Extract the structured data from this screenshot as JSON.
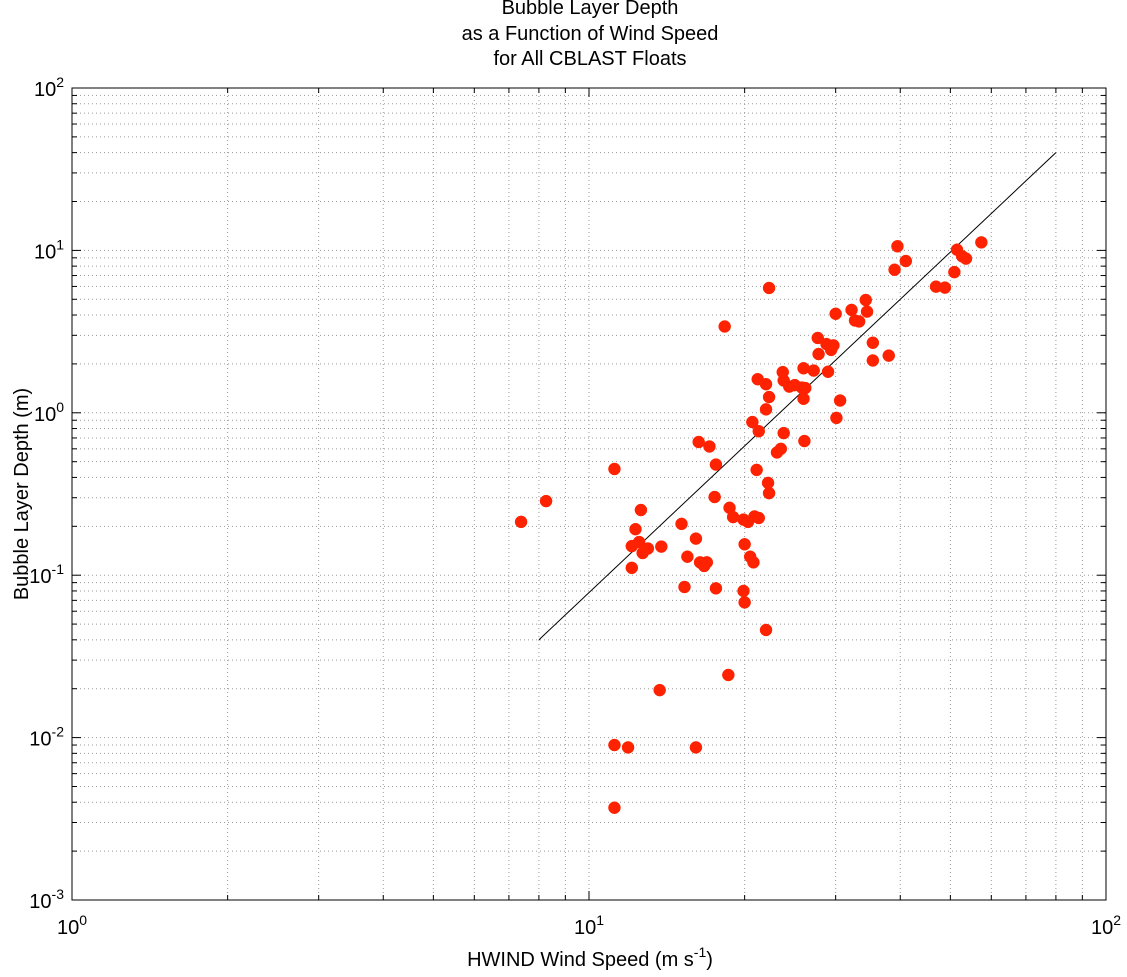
{
  "chart_data": {
    "type": "scatter",
    "title": [
      "Bubble Layer Depth",
      "as a Function of Wind Speed",
      "for All CBLAST Floats"
    ],
    "xlabel": "HWIND Wind Speed (m s^{-1})",
    "ylabel": "Bubble Layer Depth (m)",
    "xscale": "log",
    "yscale": "log",
    "grid": true,
    "xlim": [
      1,
      100
    ],
    "xticks": [
      {
        "value": 1,
        "label": "10^{0}"
      },
      {
        "value": 10,
        "label": "10^{1}"
      },
      {
        "value": 100,
        "label": "10^{2}"
      }
    ],
    "xminorticks": [
      2,
      3,
      4,
      5,
      6,
      7,
      8,
      9,
      20,
      30,
      40,
      50,
      60,
      70,
      80,
      90
    ],
    "ylim": [
      0.001,
      100
    ],
    "yticks": [
      {
        "value": 0.001,
        "label": "10^{-3}"
      },
      {
        "value": 0.01,
        "label": "10^{-2}"
      },
      {
        "value": 0.1,
        "label": "10^{-1}"
      },
      {
        "value": 1,
        "label": "10^{0}"
      },
      {
        "value": 10,
        "label": "10^{1}"
      },
      {
        "value": 100,
        "label": "10^{2}"
      }
    ],
    "yminorticks": [
      0.002,
      0.003,
      0.004,
      0.005,
      0.006,
      0.007,
      0.008,
      0.009,
      0.02,
      0.03,
      0.04,
      0.05,
      0.06,
      0.07,
      0.08,
      0.09,
      0.2,
      0.3,
      0.4,
      0.5,
      0.6,
      0.7,
      0.8,
      0.9,
      2,
      3,
      4,
      5,
      6,
      7,
      8,
      9,
      20,
      30,
      40,
      50,
      60,
      70,
      80,
      90
    ],
    "points": {
      "color": "#ff2200",
      "x": [
        7.39,
        8.26,
        11.2,
        11.2,
        11.2,
        11.9,
        12.1,
        12.1,
        12.3,
        12.5,
        12.6,
        12.7,
        13.0,
        13.7,
        13.8,
        15.1,
        15.3,
        15.5,
        16.1,
        16.1,
        16.3,
        16.4,
        16.7,
        16.9,
        17.1,
        17.6,
        17.6,
        17.5,
        18.3,
        18.6,
        18.7,
        19.0,
        19.9,
        20.0,
        19.9,
        20.0,
        20.3,
        20.5,
        20.8,
        20.7,
        20.9,
        21.2,
        21.3,
        21.1,
        21.3,
        22.0,
        22.0,
        22.0,
        22.2,
        22.3,
        22.3,
        22.3,
        23.1,
        23.5,
        23.7,
        23.8,
        23.8,
        24.4,
        25.0,
        25.8,
        26.0,
        26.1,
        26.0,
        26.2,
        27.2,
        27.7,
        27.8,
        28.8,
        29.0,
        29.4,
        29.7,
        30.0,
        30.1,
        30.6,
        32.2,
        32.7,
        33.3,
        34.3,
        34.5,
        35.4,
        35.4,
        38.0,
        39.0,
        39.5,
        41.0,
        46.9,
        48.8,
        50.9,
        51.5,
        52.7,
        53.6,
        57.4
      ],
      "y": [
        0.213,
        0.286,
        0.451,
        0.0037,
        0.009,
        0.0087,
        0.111,
        0.151,
        0.192,
        0.16,
        0.252,
        0.137,
        0.146,
        0.0196,
        0.15,
        0.207,
        0.0846,
        0.13,
        0.168,
        0.0087,
        0.661,
        0.12,
        0.114,
        0.12,
        0.62,
        0.48,
        0.083,
        0.303,
        3.4,
        0.0243,
        0.26,
        0.228,
        0.22,
        0.155,
        0.08,
        0.068,
        0.213,
        0.13,
        0.12,
        0.877,
        0.23,
        1.61,
        0.77,
        0.445,
        0.225,
        1.5,
        1.05,
        0.046,
        0.37,
        0.32,
        5.87,
        1.25,
        0.57,
        0.6,
        1.78,
        0.75,
        1.58,
        1.45,
        1.48,
        1.43,
        1.22,
        0.67,
        1.88,
        1.42,
        1.82,
        2.89,
        2.3,
        2.65,
        1.79,
        2.44,
        2.6,
        4.07,
        0.93,
        1.19,
        4.3,
        3.7,
        3.65,
        4.95,
        4.2,
        2.7,
        2.1,
        2.25,
        7.6,
        10.6,
        8.6,
        5.98,
        5.9,
        7.35,
        10.1,
        9.2,
        8.9,
        11.2
      ]
    },
    "fit": {
      "color": "#000000",
      "x": [
        8,
        80
      ],
      "y": [
        0.04,
        40
      ]
    }
  }
}
